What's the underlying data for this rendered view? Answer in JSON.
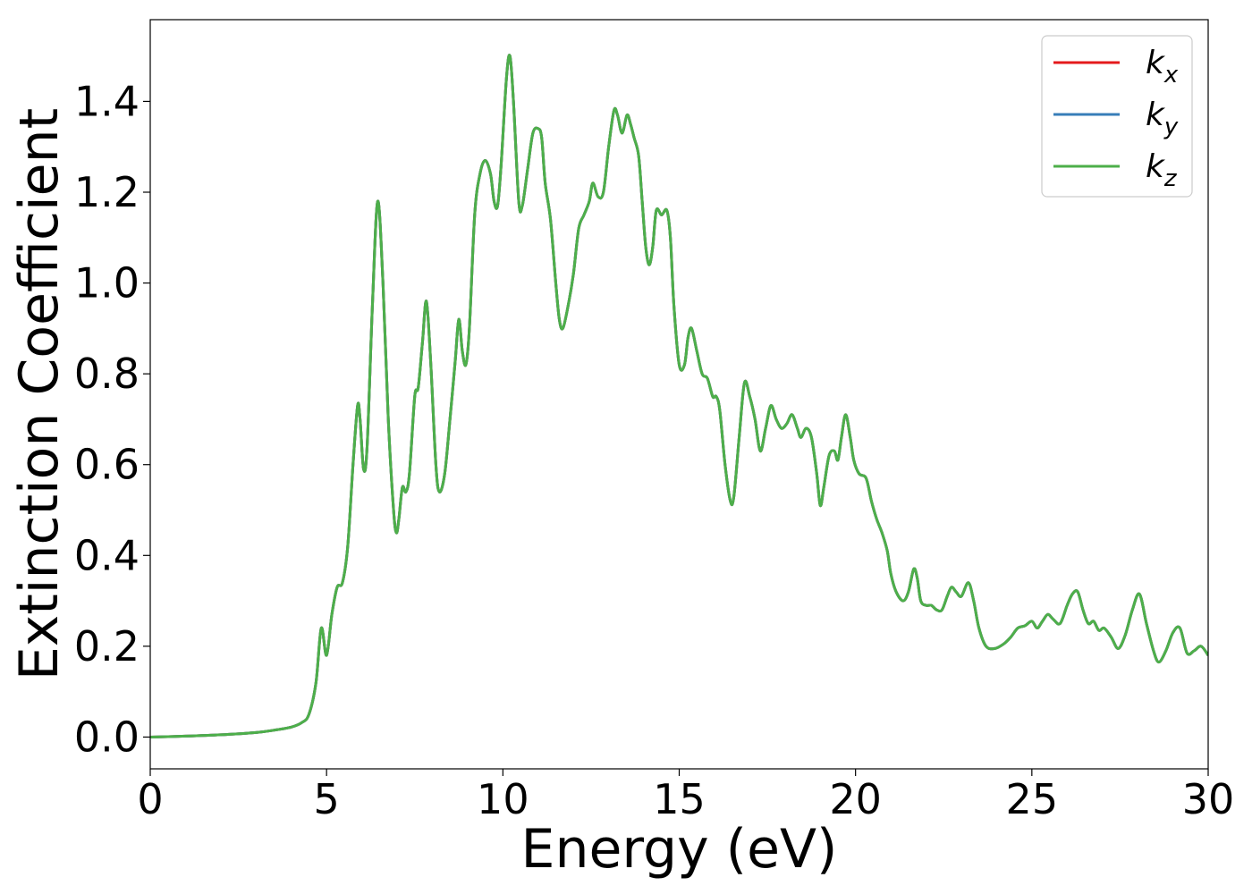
{
  "chart_data": {
    "type": "line",
    "xlabel": "Energy (eV)",
    "ylabel": "Extinction Coefficient",
    "xlim": [
      0,
      30
    ],
    "ylim": [
      -0.07,
      1.58
    ],
    "xticks": [
      0,
      5,
      10,
      15,
      20,
      25,
      30
    ],
    "xtick_labels": [
      "0",
      "5",
      "10",
      "15",
      "20",
      "25",
      "30"
    ],
    "yticks": [
      0.0,
      0.2,
      0.4,
      0.6,
      0.8,
      1.0,
      1.2,
      1.4
    ],
    "ytick_labels": [
      "0.0",
      "0.2",
      "0.4",
      "0.6",
      "0.8",
      "1.0",
      "1.2",
      "1.4"
    ],
    "grid": false,
    "legend_position": "top-right",
    "series": [
      {
        "name": "k_x",
        "label_base": "k",
        "label_sub": "x",
        "color": "#e41a1c",
        "points": [
          [
            0,
            0
          ],
          [
            1,
            0.002
          ],
          [
            2,
            0.005
          ],
          [
            3,
            0.01
          ],
          [
            3.5,
            0.015
          ],
          [
            4,
            0.022
          ],
          [
            4.3,
            0.032
          ],
          [
            4.5,
            0.05
          ],
          [
            4.7,
            0.12
          ],
          [
            4.85,
            0.24
          ],
          [
            5.0,
            0.18
          ],
          [
            5.15,
            0.27
          ],
          [
            5.3,
            0.33
          ],
          [
            5.45,
            0.34
          ],
          [
            5.6,
            0.42
          ],
          [
            5.75,
            0.6
          ],
          [
            5.88,
            0.73
          ],
          [
            5.95,
            0.7
          ],
          [
            6.05,
            0.59
          ],
          [
            6.15,
            0.64
          ],
          [
            6.3,
            0.95
          ],
          [
            6.45,
            1.18
          ],
          [
            6.6,
            1.0
          ],
          [
            6.75,
            0.7
          ],
          [
            6.9,
            0.5
          ],
          [
            6.98,
            0.45
          ],
          [
            7.05,
            0.48
          ],
          [
            7.15,
            0.55
          ],
          [
            7.25,
            0.54
          ],
          [
            7.35,
            0.58
          ],
          [
            7.5,
            0.75
          ],
          [
            7.6,
            0.77
          ],
          [
            7.72,
            0.87
          ],
          [
            7.83,
            0.96
          ],
          [
            7.95,
            0.83
          ],
          [
            8.1,
            0.6
          ],
          [
            8.2,
            0.54
          ],
          [
            8.35,
            0.58
          ],
          [
            8.5,
            0.7
          ],
          [
            8.65,
            0.83
          ],
          [
            8.75,
            0.92
          ],
          [
            8.85,
            0.85
          ],
          [
            8.95,
            0.82
          ],
          [
            9.05,
            0.9
          ],
          [
            9.2,
            1.15
          ],
          [
            9.35,
            1.24
          ],
          [
            9.5,
            1.27
          ],
          [
            9.65,
            1.24
          ],
          [
            9.75,
            1.18
          ],
          [
            9.85,
            1.17
          ],
          [
            9.95,
            1.26
          ],
          [
            10.1,
            1.45
          ],
          [
            10.2,
            1.5
          ],
          [
            10.3,
            1.4
          ],
          [
            10.45,
            1.18
          ],
          [
            10.55,
            1.17
          ],
          [
            10.7,
            1.25
          ],
          [
            10.85,
            1.33
          ],
          [
            11.0,
            1.34
          ],
          [
            11.1,
            1.32
          ],
          [
            11.2,
            1.22
          ],
          [
            11.35,
            1.14
          ],
          [
            11.5,
            1.0
          ],
          [
            11.6,
            0.92
          ],
          [
            11.7,
            0.9
          ],
          [
            11.85,
            0.95
          ],
          [
            12.0,
            1.02
          ],
          [
            12.15,
            1.12
          ],
          [
            12.3,
            1.15
          ],
          [
            12.45,
            1.18
          ],
          [
            12.55,
            1.22
          ],
          [
            12.7,
            1.19
          ],
          [
            12.85,
            1.2
          ],
          [
            13.0,
            1.3
          ],
          [
            13.15,
            1.38
          ],
          [
            13.25,
            1.37
          ],
          [
            13.38,
            1.33
          ],
          [
            13.52,
            1.37
          ],
          [
            13.62,
            1.35
          ],
          [
            13.72,
            1.32
          ],
          [
            13.85,
            1.28
          ],
          [
            13.95,
            1.18
          ],
          [
            14.05,
            1.08
          ],
          [
            14.15,
            1.04
          ],
          [
            14.25,
            1.08
          ],
          [
            14.35,
            1.16
          ],
          [
            14.5,
            1.15
          ],
          [
            14.65,
            1.16
          ],
          [
            14.75,
            1.1
          ],
          [
            14.85,
            0.95
          ],
          [
            15.0,
            0.82
          ],
          [
            15.15,
            0.82
          ],
          [
            15.25,
            0.88
          ],
          [
            15.35,
            0.9
          ],
          [
            15.5,
            0.85
          ],
          [
            15.65,
            0.8
          ],
          [
            15.8,
            0.79
          ],
          [
            15.95,
            0.75
          ],
          [
            16.05,
            0.75
          ],
          [
            16.15,
            0.72
          ],
          [
            16.3,
            0.6
          ],
          [
            16.45,
            0.52
          ],
          [
            16.55,
            0.53
          ],
          [
            16.7,
            0.66
          ],
          [
            16.85,
            0.78
          ],
          [
            17.0,
            0.75
          ],
          [
            17.15,
            0.7
          ],
          [
            17.3,
            0.63
          ],
          [
            17.45,
            0.68
          ],
          [
            17.6,
            0.73
          ],
          [
            17.75,
            0.7
          ],
          [
            17.9,
            0.68
          ],
          [
            18.05,
            0.69
          ],
          [
            18.2,
            0.71
          ],
          [
            18.35,
            0.68
          ],
          [
            18.45,
            0.66
          ],
          [
            18.6,
            0.68
          ],
          [
            18.75,
            0.66
          ],
          [
            18.9,
            0.58
          ],
          [
            19.0,
            0.51
          ],
          [
            19.1,
            0.55
          ],
          [
            19.25,
            0.62
          ],
          [
            19.4,
            0.63
          ],
          [
            19.5,
            0.61
          ],
          [
            19.6,
            0.66
          ],
          [
            19.72,
            0.71
          ],
          [
            19.85,
            0.66
          ],
          [
            19.95,
            0.61
          ],
          [
            20.1,
            0.58
          ],
          [
            20.3,
            0.57
          ],
          [
            20.45,
            0.52
          ],
          [
            20.6,
            0.48
          ],
          [
            20.75,
            0.45
          ],
          [
            20.9,
            0.41
          ],
          [
            21.0,
            0.36
          ],
          [
            21.15,
            0.32
          ],
          [
            21.35,
            0.3
          ],
          [
            21.5,
            0.32
          ],
          [
            21.65,
            0.37
          ],
          [
            21.75,
            0.35
          ],
          [
            21.85,
            0.3
          ],
          [
            22.0,
            0.29
          ],
          [
            22.15,
            0.29
          ],
          [
            22.3,
            0.28
          ],
          [
            22.45,
            0.28
          ],
          [
            22.6,
            0.31
          ],
          [
            22.72,
            0.33
          ],
          [
            22.85,
            0.32
          ],
          [
            23.0,
            0.31
          ],
          [
            23.2,
            0.34
          ],
          [
            23.35,
            0.3
          ],
          [
            23.5,
            0.24
          ],
          [
            23.7,
            0.2
          ],
          [
            23.95,
            0.195
          ],
          [
            24.2,
            0.205
          ],
          [
            24.4,
            0.22
          ],
          [
            24.6,
            0.24
          ],
          [
            24.8,
            0.245
          ],
          [
            25.0,
            0.255
          ],
          [
            25.15,
            0.24
          ],
          [
            25.3,
            0.255
          ],
          [
            25.45,
            0.27
          ],
          [
            25.6,
            0.26
          ],
          [
            25.8,
            0.25
          ],
          [
            26.0,
            0.29
          ],
          [
            26.15,
            0.315
          ],
          [
            26.3,
            0.32
          ],
          [
            26.45,
            0.28
          ],
          [
            26.6,
            0.25
          ],
          [
            26.75,
            0.255
          ],
          [
            26.9,
            0.235
          ],
          [
            27.05,
            0.24
          ],
          [
            27.25,
            0.22
          ],
          [
            27.45,
            0.195
          ],
          [
            27.65,
            0.225
          ],
          [
            27.85,
            0.28
          ],
          [
            28.05,
            0.315
          ],
          [
            28.25,
            0.25
          ],
          [
            28.45,
            0.19
          ],
          [
            28.6,
            0.165
          ],
          [
            28.8,
            0.19
          ],
          [
            29.0,
            0.23
          ],
          [
            29.2,
            0.24
          ],
          [
            29.4,
            0.185
          ],
          [
            29.6,
            0.19
          ],
          [
            29.8,
            0.2
          ],
          [
            30.0,
            0.18
          ]
        ]
      },
      {
        "name": "k_y",
        "label_base": "k",
        "label_sub": "y",
        "color": "#377eb8",
        "same_as": "k_x"
      },
      {
        "name": "k_z",
        "label_base": "k",
        "label_sub": "z",
        "color": "#4daf4a",
        "same_as": "k_x"
      }
    ]
  }
}
